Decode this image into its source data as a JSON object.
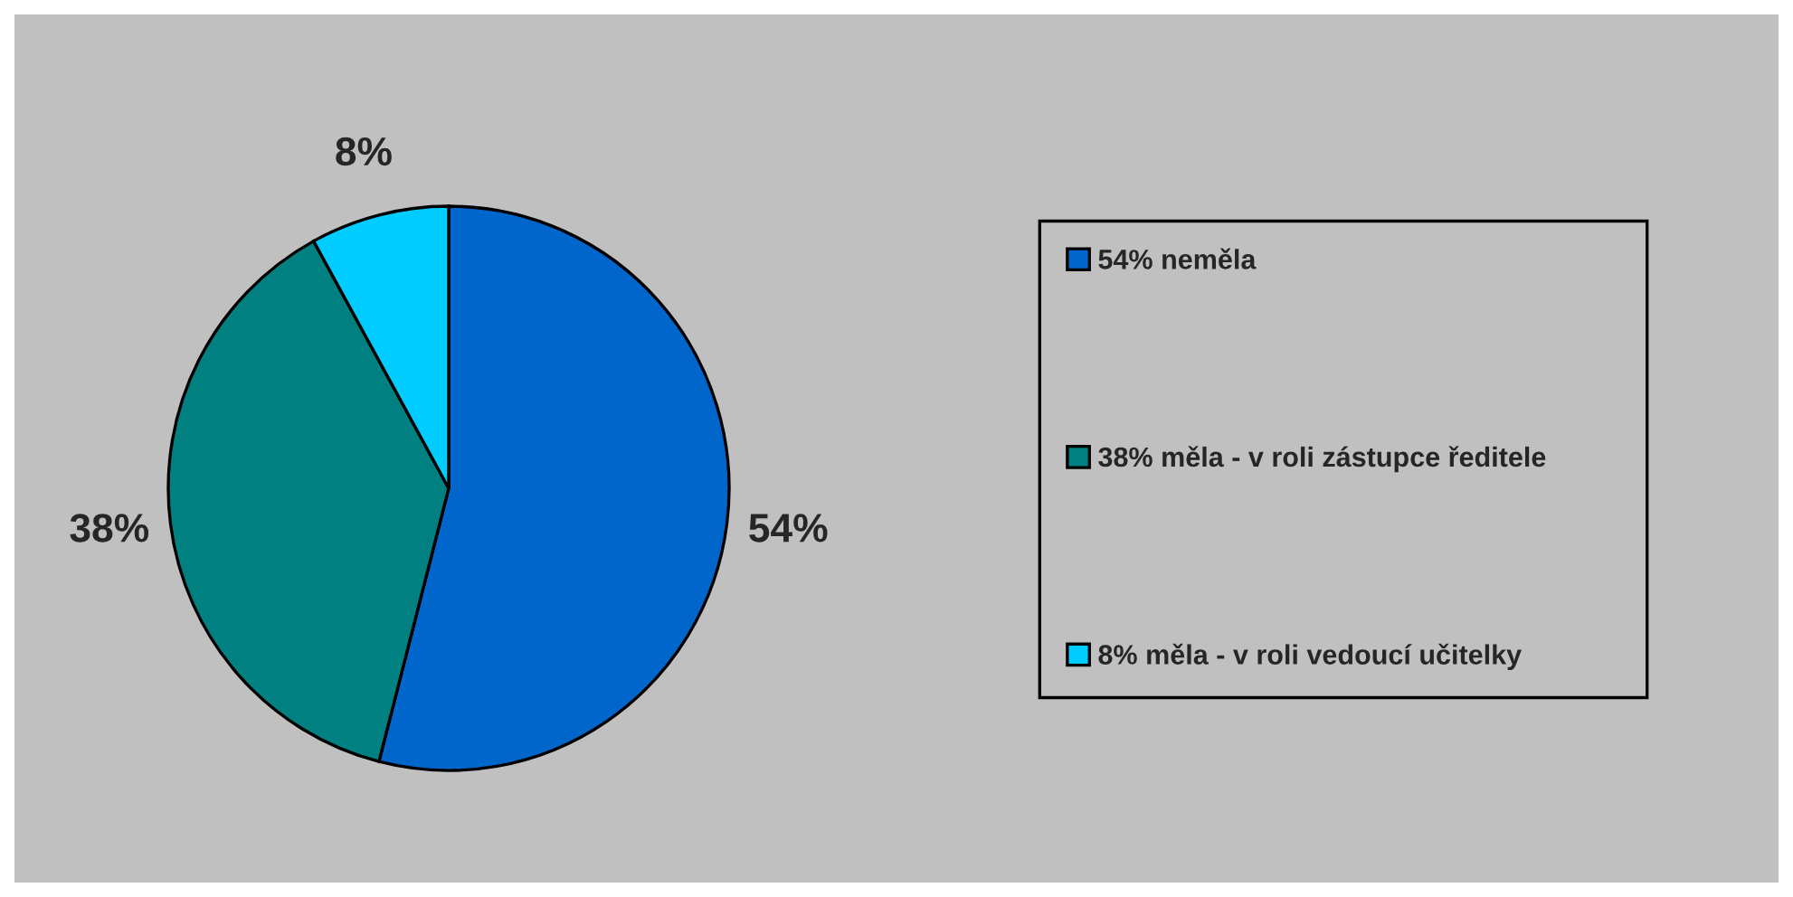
{
  "chart_data": {
    "type": "pie",
    "categories": [
      "54% neměla",
      "38% měla - v roli zástupce ředitele",
      "8% měla - v roli vedoucí učitelky"
    ],
    "values": [
      54,
      38,
      8
    ],
    "colors": [
      "#0066cc",
      "#008080",
      "#00ccff"
    ],
    "value_labels": [
      "54%",
      "38%",
      "8%"
    ],
    "legend": "right"
  }
}
